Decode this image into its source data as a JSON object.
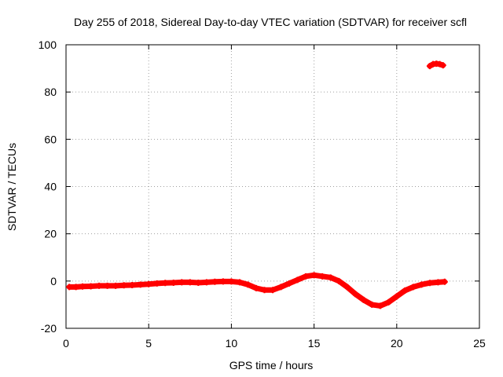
{
  "chart_data": {
    "type": "scatter",
    "title": "Day 255 of 2018, Sidereal Day-to-day VTEC variation (SDTVAR) for receiver scfl",
    "xlabel": "GPS time / hours",
    "ylabel": "SDTVAR / TECUs",
    "xlim": [
      0,
      25
    ],
    "ylim": [
      -20,
      100
    ],
    "xticks": [
      0,
      5,
      10,
      15,
      20,
      25
    ],
    "yticks": [
      -20,
      0,
      20,
      40,
      60,
      80,
      100
    ],
    "grid": true,
    "point_color": "#ff0000",
    "series": [
      {
        "x": [
          0.2,
          0.6,
          1.0,
          1.5,
          2.0,
          2.5,
          3.0,
          3.5,
          4.0,
          4.5,
          5.0,
          5.5,
          6.0,
          6.5,
          7.0,
          7.5,
          8.0,
          8.5,
          9.0,
          9.5,
          10.0,
          10.5,
          11.0,
          11.5,
          12.0,
          12.5,
          13.0,
          13.5,
          14.0,
          14.5,
          15.0,
          15.5,
          16.0,
          16.5,
          17.0,
          17.5,
          18.0,
          18.5,
          19.0,
          19.5,
          20.0,
          20.5,
          21.0,
          21.5,
          22.0,
          22.5,
          22.9
        ],
        "y": [
          -2.5,
          -2.5,
          -2.3,
          -2.2,
          -2.0,
          -2.0,
          -2.0,
          -1.8,
          -1.7,
          -1.5,
          -1.3,
          -1.0,
          -0.8,
          -0.7,
          -0.5,
          -0.5,
          -0.7,
          -0.5,
          -0.3,
          -0.2,
          -0.2,
          -0.5,
          -1.5,
          -3.0,
          -3.8,
          -3.8,
          -2.5,
          -1.0,
          0.5,
          2.0,
          2.5,
          2.0,
          1.5,
          0.0,
          -2.5,
          -5.5,
          -8.0,
          -10.0,
          -10.5,
          -9.0,
          -6.5,
          -4.0,
          -2.5,
          -1.5,
          -0.8,
          -0.5,
          -0.3
        ]
      },
      {
        "x": [
          22.0,
          22.2,
          22.4,
          22.6,
          22.8
        ],
        "y": [
          91.0,
          91.8,
          92.0,
          91.8,
          91.3
        ]
      }
    ]
  }
}
